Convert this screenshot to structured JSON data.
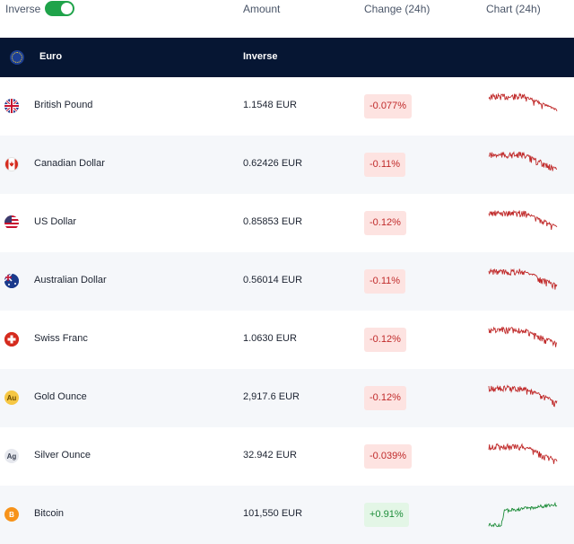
{
  "header": {
    "inverse_label": "Inverse",
    "inverse_on": true,
    "col_amount": "Amount",
    "col_change": "Change (24h)",
    "col_chart": "Chart (24h)"
  },
  "base": {
    "name": "Euro",
    "inverse_label": "Inverse",
    "flag_icon": "eu-flag-icon"
  },
  "colors": {
    "negative": "#c02a2a",
    "negative_bg": "#fde3e1",
    "positive": "#1e8d3a",
    "positive_bg": "#e3f6e6",
    "header_bg": "#061633",
    "toggle_on": "#1fa34a"
  },
  "rows": [
    {
      "name": "British Pound",
      "amount": "1.1548 EUR",
      "change": "-0.077%",
      "trend": "down",
      "icon": "uk-flag-icon"
    },
    {
      "name": "Canadian Dollar",
      "amount": "0.62426 EUR",
      "change": "-0.11%",
      "trend": "down",
      "icon": "canada-flag-icon"
    },
    {
      "name": "US Dollar",
      "amount": "0.85853 EUR",
      "change": "-0.12%",
      "trend": "down",
      "icon": "us-flag-icon"
    },
    {
      "name": "Australian Dollar",
      "amount": "0.56014 EUR",
      "change": "-0.11%",
      "trend": "down",
      "icon": "australia-flag-icon"
    },
    {
      "name": "Swiss Franc",
      "amount": "1.0630 EUR",
      "change": "-0.12%",
      "trend": "down",
      "icon": "swiss-flag-icon"
    },
    {
      "name": "Gold Ounce",
      "amount": "2,917.6 EUR",
      "change": "-0.12%",
      "trend": "down",
      "icon": "gold-icon",
      "icon_text": "Au"
    },
    {
      "name": "Silver Ounce",
      "amount": "32.942 EUR",
      "change": "-0.039%",
      "trend": "down",
      "icon": "silver-icon",
      "icon_text": "Ag"
    },
    {
      "name": "Bitcoin",
      "amount": "101,550 EUR",
      "change": "+0.91%",
      "trend": "up",
      "icon": "bitcoin-icon",
      "icon_text": "B"
    }
  ]
}
